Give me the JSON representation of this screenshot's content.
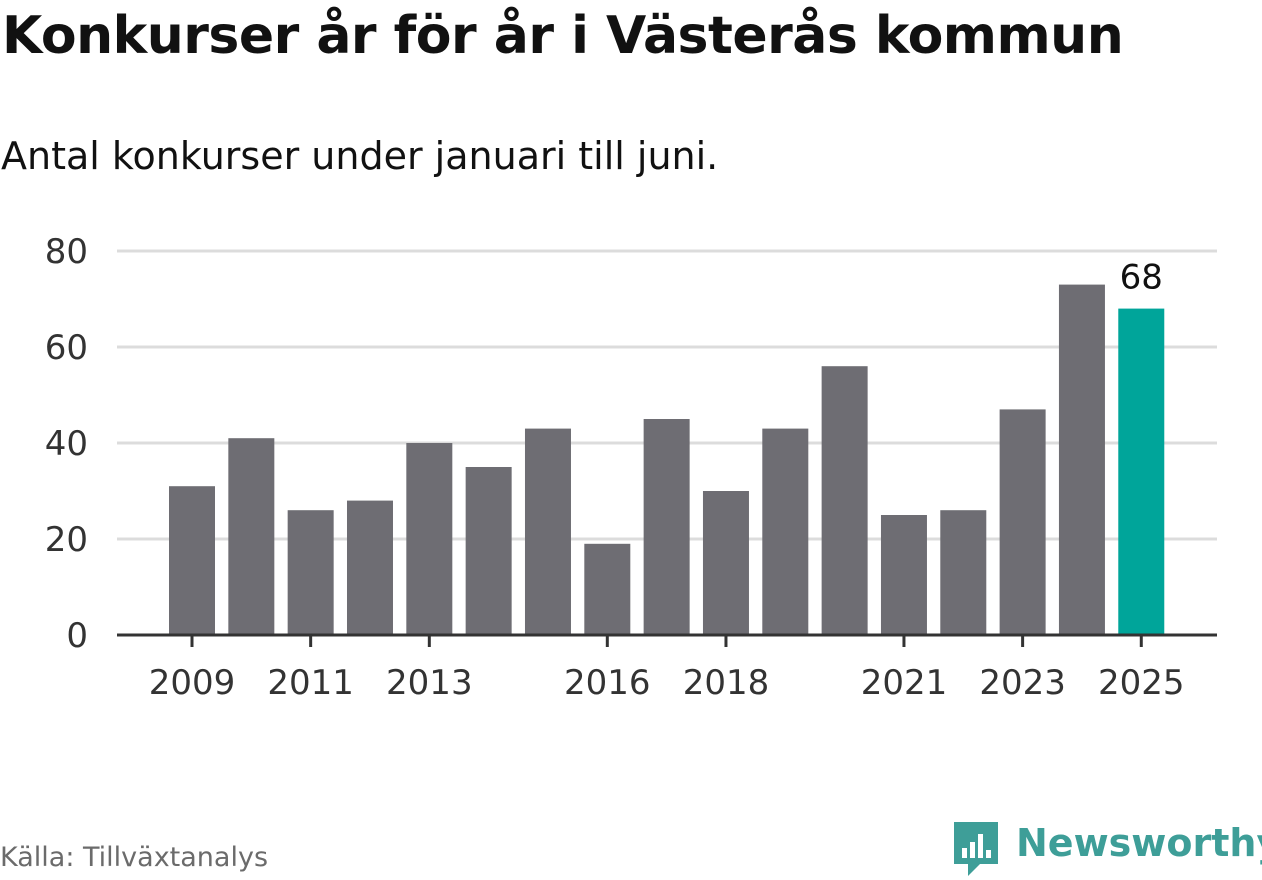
{
  "title": "Konkurser år för år i Västerås kommun",
  "subtitle": "Antal konkurser under januari till juni.",
  "source": "Källa: Tillväxtanalys",
  "brand": {
    "name": "Newsworthy",
    "logo_icon": "bar-chart-speech-bubble-icon"
  },
  "colors": {
    "bar": "#6e6d73",
    "highlight": "#00a59a",
    "grid": "#dcdcdc",
    "axis": "#333333",
    "brand": "#3e9e98"
  },
  "chart_data": {
    "type": "bar",
    "categories": [
      "2009",
      "2010",
      "2011",
      "2012",
      "2013",
      "2014",
      "2015",
      "2016",
      "2017",
      "2018",
      "2019",
      "2020",
      "2021",
      "2022",
      "2023",
      "2024",
      "2025"
    ],
    "values": [
      31,
      41,
      26,
      28,
      40,
      35,
      43,
      19,
      45,
      30,
      43,
      56,
      25,
      26,
      47,
      73,
      68
    ],
    "xtick_labels": [
      "2009",
      "2011",
      "2013",
      "2016",
      "2018",
      "2021",
      "2023",
      "2025"
    ],
    "yticks": [
      0,
      20,
      40,
      60,
      80
    ],
    "ylim": [
      0,
      80
    ],
    "highlight": "2025",
    "data_labels": [
      {
        "category": "2025",
        "label": "68"
      }
    ],
    "grid": "horizontal"
  }
}
